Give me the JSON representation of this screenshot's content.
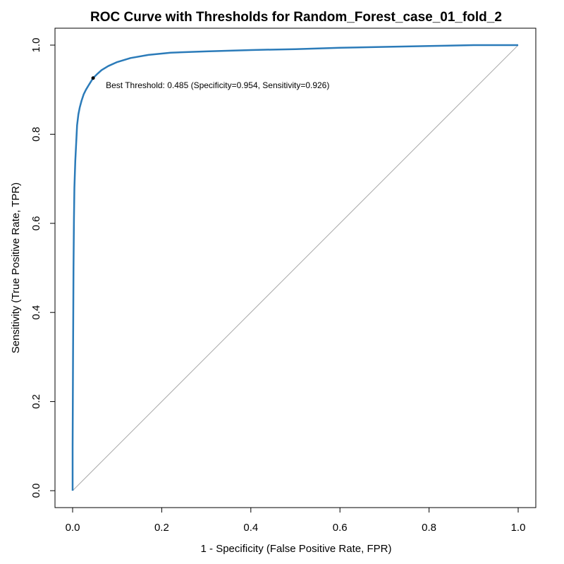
{
  "chart_data": {
    "type": "line",
    "title": "ROC Curve with Thresholds for Random_Forest_case_01_fold_2",
    "xlabel": "1 - Specificity (False Positive Rate, FPR)",
    "ylabel": "Sensitivity (True Positive Rate, TPR)",
    "xlim": [
      0,
      1
    ],
    "ylim": [
      0,
      1
    ],
    "x_ticks": [
      0.0,
      0.2,
      0.4,
      0.6,
      0.8,
      1.0
    ],
    "x_tick_labels": [
      "0.0",
      "0.2",
      "0.4",
      "0.6",
      "0.8",
      "1.0"
    ],
    "y_ticks": [
      0.0,
      0.2,
      0.4,
      0.6,
      0.8,
      1.0
    ],
    "y_tick_labels": [
      "0.0",
      "0.2",
      "0.4",
      "0.6",
      "0.8",
      "1.0"
    ],
    "grid": false,
    "colors": {
      "curve": "#2b7bb9",
      "diagonal": "#aaaaaa",
      "frame": "#000000",
      "marker": "#000000"
    },
    "series": [
      {
        "name": "ROC",
        "x": [
          0.0,
          0.0,
          0.001,
          0.002,
          0.003,
          0.004,
          0.006,
          0.008,
          0.01,
          0.013,
          0.016,
          0.02,
          0.025,
          0.03,
          0.036,
          0.041,
          0.046,
          0.054,
          0.065,
          0.08,
          0.1,
          0.13,
          0.17,
          0.22,
          0.3,
          0.4,
          0.5,
          0.6,
          0.7,
          0.8,
          0.9,
          1.0
        ],
        "y": [
          0.0,
          0.1,
          0.31,
          0.5,
          0.61,
          0.68,
          0.74,
          0.78,
          0.82,
          0.845,
          0.86,
          0.875,
          0.89,
          0.9,
          0.91,
          0.918,
          0.926,
          0.934,
          0.944,
          0.953,
          0.962,
          0.971,
          0.978,
          0.983,
          0.986,
          0.989,
          0.991,
          0.994,
          0.996,
          0.998,
          1.0,
          1.0
        ]
      },
      {
        "name": "Reference diagonal",
        "x": [
          0,
          1
        ],
        "y": [
          0,
          1
        ]
      }
    ],
    "best_threshold_point": {
      "fpr": 0.046,
      "tpr": 0.926,
      "threshold": 0.485,
      "specificity": 0.954,
      "sensitivity": 0.926
    },
    "annotations": [
      {
        "text": "Best Threshold: 0.485 (Specificity=0.954, Sensitivity=0.926)"
      }
    ]
  }
}
